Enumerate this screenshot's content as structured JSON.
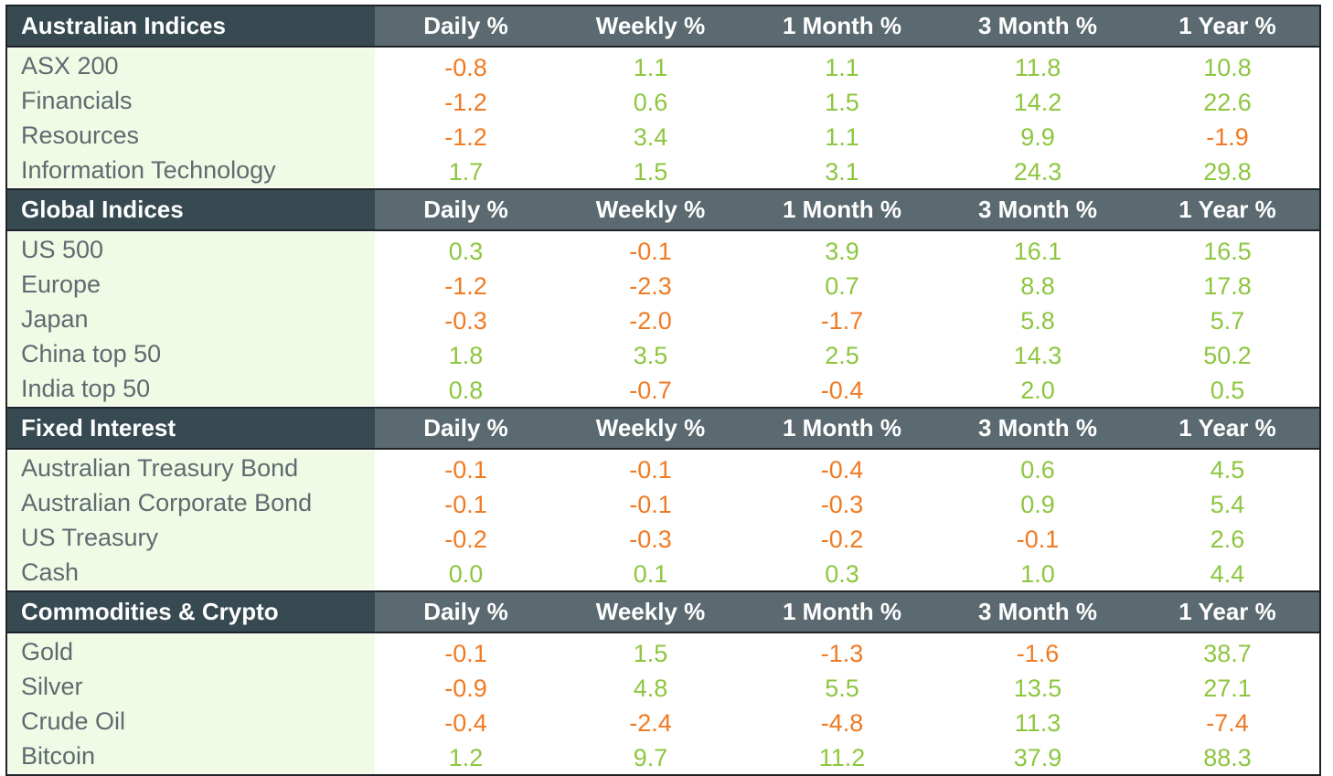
{
  "colors": {
    "positive": "#8dc63f",
    "negative": "#f07a22",
    "header_bg": "#5a6a70",
    "section_name_bg": "#374a51",
    "name_cell_bg": "#f1fae5"
  },
  "chart_data": {
    "type": "table",
    "columns": [
      "Daily %",
      "Weekly %",
      "1 Month %",
      "3 Month %",
      "1 Year %"
    ],
    "sections": [
      {
        "title": "Australian Indices",
        "rows": [
          {
            "name": "ASX 200",
            "values": [
              "-0.8",
              "1.1",
              "1.1",
              "11.8",
              "10.8"
            ]
          },
          {
            "name": "Financials",
            "values": [
              "-1.2",
              "0.6",
              "1.5",
              "14.2",
              "22.6"
            ]
          },
          {
            "name": "Resources",
            "values": [
              "-1.2",
              "3.4",
              "1.1",
              "9.9",
              "-1.9"
            ]
          },
          {
            "name": "Information Technology",
            "values": [
              "1.7",
              "1.5",
              "3.1",
              "24.3",
              "29.8"
            ]
          }
        ]
      },
      {
        "title": "Global Indices",
        "rows": [
          {
            "name": "US 500",
            "values": [
              "0.3",
              "-0.1",
              "3.9",
              "16.1",
              "16.5"
            ]
          },
          {
            "name": "Europe",
            "values": [
              "-1.2",
              "-2.3",
              "0.7",
              "8.8",
              "17.8"
            ]
          },
          {
            "name": "Japan",
            "values": [
              "-0.3",
              "-2.0",
              "-1.7",
              "5.8",
              "5.7"
            ]
          },
          {
            "name": "China top 50",
            "values": [
              "1.8",
              "3.5",
              "2.5",
              "14.3",
              "50.2"
            ]
          },
          {
            "name": "India top 50",
            "values": [
              "0.8",
              "-0.7",
              "-0.4",
              "2.0",
              "0.5"
            ]
          }
        ]
      },
      {
        "title": "Fixed Interest",
        "rows": [
          {
            "name": "Australian Treasury Bond",
            "values": [
              "-0.1",
              "-0.1",
              "-0.4",
              "0.6",
              "4.5"
            ]
          },
          {
            "name": "Australian Corporate Bond",
            "values": [
              "-0.1",
              "-0.1",
              "-0.3",
              "0.9",
              "5.4"
            ]
          },
          {
            "name": "US Treasury",
            "values": [
              "-0.2",
              "-0.3",
              "-0.2",
              "-0.1",
              "2.6"
            ]
          },
          {
            "name": "Cash",
            "values": [
              "0.0",
              "0.1",
              "0.3",
              "1.0",
              "4.4"
            ]
          }
        ]
      },
      {
        "title": "Commodities & Crypto",
        "rows": [
          {
            "name": "Gold",
            "values": [
              "-0.1",
              "1.5",
              "-1.3",
              "-1.6",
              "38.7"
            ]
          },
          {
            "name": "Silver",
            "values": [
              "-0.9",
              "4.8",
              "5.5",
              "13.5",
              "27.1"
            ]
          },
          {
            "name": "Crude Oil",
            "values": [
              "-0.4",
              "-2.4",
              "-4.8",
              "11.3",
              "-7.4"
            ]
          },
          {
            "name": "Bitcoin",
            "values": [
              "1.2",
              "9.7",
              "11.2",
              "37.9",
              "88.3"
            ]
          }
        ]
      }
    ]
  }
}
